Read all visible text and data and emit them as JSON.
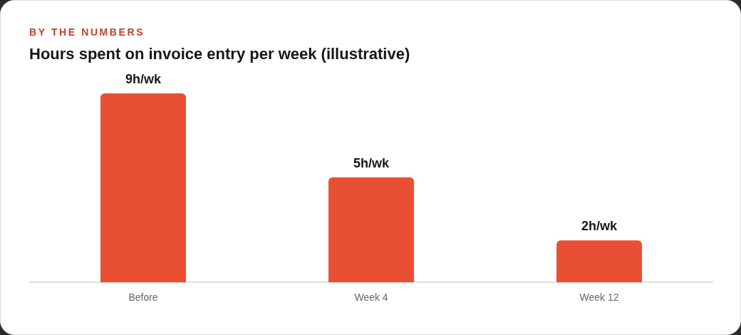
{
  "chart_data": {
    "type": "bar",
    "subtitle": "BY THE NUMBERS",
    "title": "Hours spent on invoice entry per week (illustrative)",
    "categories": [
      "Before",
      "Week 4",
      "Week 12"
    ],
    "values": [
      9,
      5,
      2
    ],
    "value_labels": [
      "9h/wk",
      "5h/wk",
      "2h/wk"
    ],
    "color": "#e95033",
    "grid": false,
    "legend": false,
    "tick_labels": "x"
  }
}
